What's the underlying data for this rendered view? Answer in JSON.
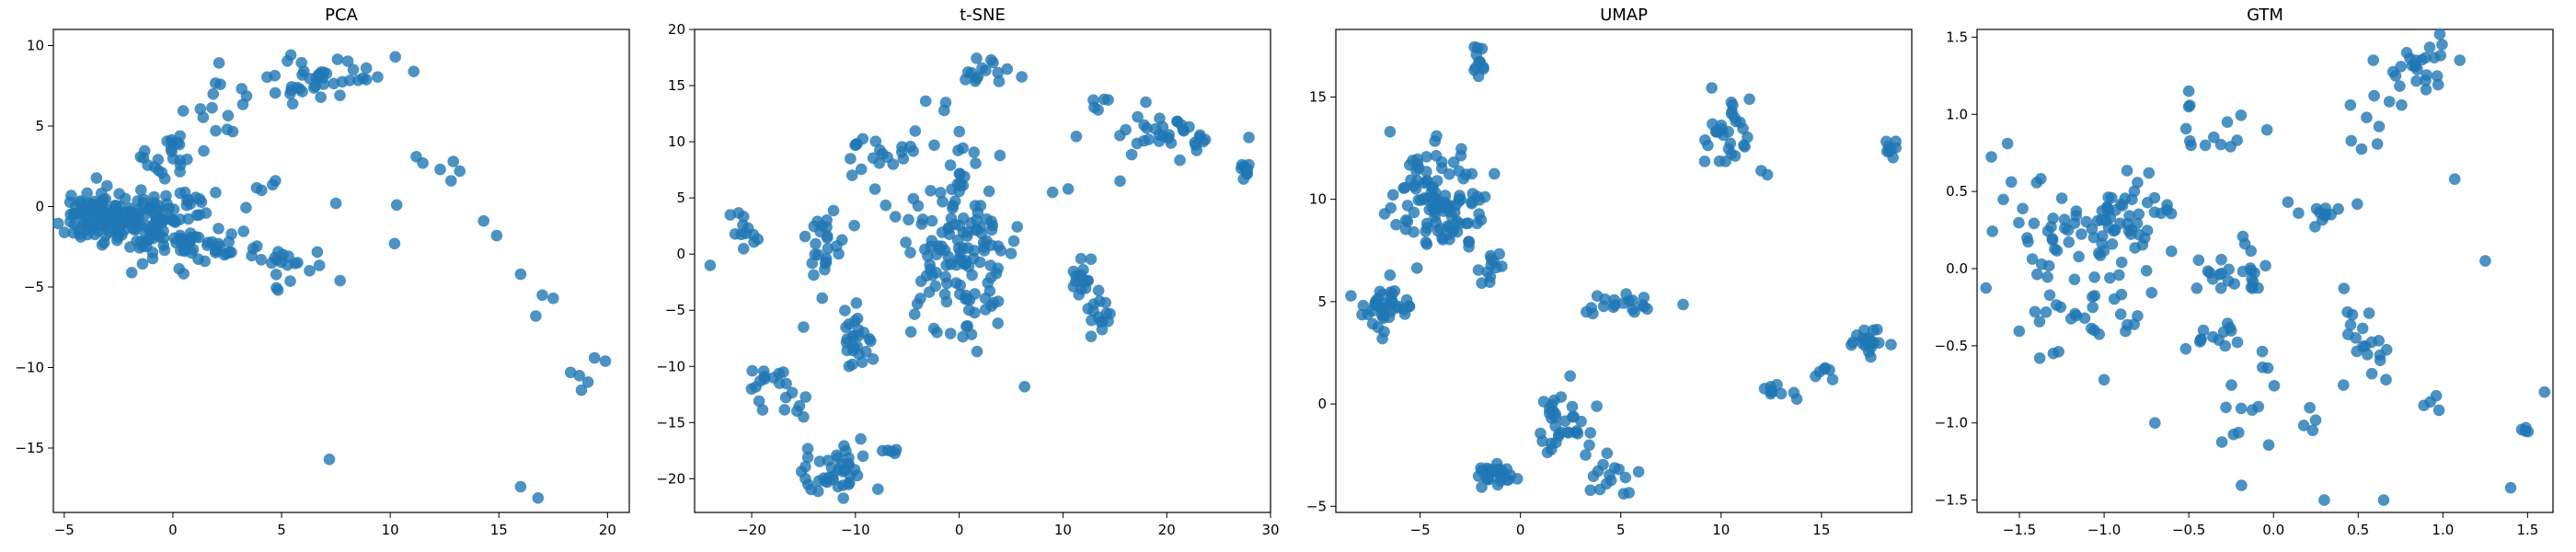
{
  "figure": {
    "point_color": "#1f77b4",
    "background": "#ffffff"
  },
  "chart_data": [
    {
      "type": "scatter",
      "title": "PCA",
      "xlabel": "",
      "ylabel": "",
      "xlim": [
        -5.5,
        21.0
      ],
      "ylim": [
        -19.0,
        11.0
      ],
      "xticks": [
        -5,
        0,
        5,
        10,
        15,
        20
      ],
      "yticks": [
        -15,
        -10,
        -5,
        0,
        5,
        10
      ],
      "xtick_labels": [
        "−5",
        "0",
        "5",
        "10",
        "15",
        "20"
      ],
      "ytick_labels": [
        "−15",
        "−10",
        "−5",
        "0",
        "5",
        "10"
      ],
      "grid": false,
      "legend": "none",
      "clusters": [
        {
          "center": [
            -3.5,
            -0.5
          ],
          "spread": [
            1.0,
            0.9
          ],
          "count": 110
        },
        {
          "center": [
            -0.5,
            -1.0
          ],
          "spread": [
            1.2,
            1.2
          ],
          "count": 110
        },
        {
          "center": [
            0.0,
            3.0
          ],
          "spread": [
            0.6,
            0.8
          ],
          "count": 20
        },
        {
          "center": [
            2.5,
            -2.5
          ],
          "spread": [
            1.5,
            0.6
          ],
          "count": 30
        },
        {
          "center": [
            5.5,
            -4.0
          ],
          "spread": [
            1.0,
            0.6
          ],
          "count": 15
        },
        {
          "center": [
            6.5,
            8.0
          ],
          "spread": [
            1.8,
            1.2
          ],
          "count": 45
        },
        {
          "center": [
            2.0,
            5.0
          ],
          "spread": [
            1.0,
            1.0
          ],
          "count": 10
        },
        {
          "center": [
            4.5,
            1.5
          ],
          "spread": [
            0.4,
            0.3
          ],
          "count": 4
        }
      ],
      "points": [
        [
          7.2,
          -15.7
        ],
        [
          16.0,
          -17.4
        ],
        [
          16.8,
          -18.1
        ],
        [
          10.3,
          0.1
        ],
        [
          10.2,
          -2.3
        ],
        [
          11.2,
          3.1
        ],
        [
          11.5,
          2.7
        ],
        [
          12.3,
          2.3
        ],
        [
          12.8,
          1.6
        ],
        [
          12.9,
          2.8
        ],
        [
          13.2,
          2.2
        ],
        [
          14.3,
          -0.9
        ],
        [
          14.9,
          -1.8
        ],
        [
          16.0,
          -4.2
        ],
        [
          16.7,
          -6.8
        ],
        [
          17.0,
          -5.5
        ],
        [
          17.5,
          -5.7
        ],
        [
          18.3,
          -10.3
        ],
        [
          18.7,
          -10.5
        ],
        [
          18.8,
          -11.4
        ],
        [
          19.1,
          -10.9
        ],
        [
          19.4,
          -9.4
        ],
        [
          19.9,
          -9.6
        ],
        [
          7.5,
          0.2
        ],
        [
          8.3,
          8.5
        ],
        [
          8.9,
          8.6
        ]
      ]
    },
    {
      "type": "scatter",
      "title": "t-SNE",
      "xlabel": "",
      "ylabel": "",
      "xlim": [
        -25.5,
        30.0
      ],
      "ylim": [
        -23.0,
        20.0
      ],
      "xticks": [
        -20,
        -10,
        0,
        10,
        20,
        30
      ],
      "yticks": [
        -20,
        -15,
        -10,
        -5,
        0,
        5,
        10,
        15,
        20
      ],
      "xtick_labels": [
        "−20",
        "−10",
        "0",
        "10",
        "20",
        "30"
      ],
      "ytick_labels": [
        "−20",
        "−15",
        "−10",
        "−5",
        "0",
        "5",
        "10",
        "15",
        "20"
      ],
      "grid": false,
      "legend": "none",
      "clusters": [
        {
          "center": [
            0.0,
            1.0
          ],
          "spread": [
            3.0,
            4.5
          ],
          "count": 150
        },
        {
          "center": [
            2.5,
            16.5
          ],
          "spread": [
            1.2,
            0.8
          ],
          "count": 15
        },
        {
          "center": [
            20.0,
            10.5
          ],
          "spread": [
            3.0,
            1.0
          ],
          "count": 35
        },
        {
          "center": [
            27.5,
            7.5
          ],
          "spread": [
            0.4,
            0.4
          ],
          "count": 10
        },
        {
          "center": [
            -20.5,
            2.0
          ],
          "spread": [
            1.0,
            1.0
          ],
          "count": 12
        },
        {
          "center": [
            -13.0,
            1.0
          ],
          "spread": [
            1.0,
            1.5
          ],
          "count": 25
        },
        {
          "center": [
            -10.0,
            -7.0
          ],
          "spread": [
            0.8,
            1.5
          ],
          "count": 25
        },
        {
          "center": [
            -18.0,
            -12.0
          ],
          "spread": [
            1.5,
            1.0
          ],
          "count": 20
        },
        {
          "center": [
            -12.0,
            -19.5
          ],
          "spread": [
            1.8,
            1.2
          ],
          "count": 40
        },
        {
          "center": [
            12.0,
            -2.0
          ],
          "spread": [
            0.6,
            1.0
          ],
          "count": 15
        },
        {
          "center": [
            13.5,
            -5.5
          ],
          "spread": [
            0.6,
            1.0
          ],
          "count": 15
        },
        {
          "center": [
            -8.0,
            9.0
          ],
          "spread": [
            1.5,
            0.8
          ],
          "count": 15
        },
        {
          "center": [
            -6.5,
            -17.0
          ],
          "spread": [
            0.5,
            0.8
          ],
          "count": 5
        },
        {
          "center": [
            13.5,
            13.5
          ],
          "spread": [
            0.3,
            0.8
          ],
          "count": 5
        }
      ],
      "points": [
        [
          -24.0,
          -1.0
        ],
        [
          6.3,
          -11.8
        ],
        [
          -1.3,
          13.5
        ],
        [
          9.0,
          5.5
        ],
        [
          10.5,
          5.8
        ],
        [
          15.5,
          6.5
        ],
        [
          -15.0,
          -6.5
        ],
        [
          -15.0,
          -14.5
        ]
      ]
    },
    {
      "type": "scatter",
      "title": "UMAP",
      "xlabel": "",
      "ylabel": "",
      "xlim": [
        -9.2,
        19.5
      ],
      "ylim": [
        -5.3,
        18.3
      ],
      "xticks": [
        -5,
        0,
        5,
        10,
        15
      ],
      "yticks": [
        -5,
        0,
        5,
        10,
        15
      ],
      "xtick_labels": [
        "−5",
        "0",
        "5",
        "10",
        "15"
      ],
      "ytick_labels": [
        "−5",
        "0",
        "5",
        "10",
        "15"
      ],
      "grid": false,
      "legend": "none",
      "clusters": [
        {
          "center": [
            -4.0,
            10.0
          ],
          "spread": [
            1.2,
            1.2
          ],
          "count": 110
        },
        {
          "center": [
            -2.0,
            16.8
          ],
          "spread": [
            0.2,
            0.5
          ],
          "count": 12
        },
        {
          "center": [
            -6.8,
            4.6
          ],
          "spread": [
            0.8,
            0.6
          ],
          "count": 40
        },
        {
          "center": [
            -1.5,
            6.7
          ],
          "spread": [
            0.4,
            0.4
          ],
          "count": 12
        },
        {
          "center": [
            5.5,
            4.9
          ],
          "spread": [
            1.0,
            0.3
          ],
          "count": 20
        },
        {
          "center": [
            10.3,
            13.0
          ],
          "spread": [
            0.6,
            1.0
          ],
          "count": 30
        },
        {
          "center": [
            18.4,
            12.5
          ],
          "spread": [
            0.2,
            0.3
          ],
          "count": 8
        },
        {
          "center": [
            17.3,
            3.1
          ],
          "spread": [
            0.4,
            0.3
          ],
          "count": 20
        },
        {
          "center": [
            15.0,
            1.3
          ],
          "spread": [
            0.2,
            0.2
          ],
          "count": 6
        },
        {
          "center": [
            12.7,
            0.7
          ],
          "spread": [
            0.6,
            0.2
          ],
          "count": 10
        },
        {
          "center": [
            2.0,
            -1.0
          ],
          "spread": [
            0.7,
            1.0
          ],
          "count": 35
        },
        {
          "center": [
            -1.2,
            -3.5
          ],
          "spread": [
            0.5,
            0.3
          ],
          "count": 30
        },
        {
          "center": [
            4.8,
            -3.3
          ],
          "spread": [
            0.6,
            0.4
          ],
          "count": 15
        }
      ],
      "points": [
        [
          -6.5,
          13.3
        ],
        [
          12.0,
          11.4
        ],
        [
          12.3,
          11.2
        ]
      ]
    },
    {
      "type": "scatter",
      "title": "GTM",
      "xlabel": "",
      "ylabel": "",
      "xlim": [
        -1.75,
        1.65
      ],
      "ylim": [
        -1.58,
        1.55
      ],
      "xticks": [
        -1.5,
        -1.0,
        -0.5,
        0.0,
        0.5,
        1.0,
        1.5
      ],
      "yticks": [
        -1.5,
        -1.0,
        -0.5,
        0.0,
        0.5,
        1.0,
        1.5
      ],
      "xtick_labels": [
        "−1.5",
        "−1.0",
        "−0.5",
        "0.0",
        "0.5",
        "1.0",
        "1.5"
      ],
      "ytick_labels": [
        "−1.5",
        "−1.0",
        "−0.5",
        "0.0",
        "0.5",
        "1.0",
        "1.5"
      ],
      "grid": false,
      "legend": "none",
      "clusters": [
        {
          "center": [
            -0.9,
            0.3
          ],
          "spread": [
            0.15,
            0.15
          ],
          "count": 60
        },
        {
          "center": [
            -1.4,
            0.3
          ],
          "spread": [
            0.12,
            0.25
          ],
          "count": 30
        },
        {
          "center": [
            -1.1,
            -0.25
          ],
          "spread": [
            0.2,
            0.12
          ],
          "count": 30
        },
        {
          "center": [
            -0.15,
            0.0
          ],
          "spread": [
            0.15,
            0.08
          ],
          "count": 25
        },
        {
          "center": [
            0.85,
            1.3
          ],
          "spread": [
            0.1,
            0.15
          ],
          "count": 25
        },
        {
          "center": [
            0.6,
            1.0
          ],
          "spread": [
            0.08,
            0.15
          ],
          "count": 10
        },
        {
          "center": [
            -0.3,
            0.9
          ],
          "spread": [
            0.1,
            0.1
          ],
          "count": 8
        },
        {
          "center": [
            0.3,
            0.35
          ],
          "spread": [
            0.15,
            0.05
          ],
          "count": 12
        },
        {
          "center": [
            0.55,
            -0.45
          ],
          "spread": [
            0.08,
            0.15
          ],
          "count": 20
        },
        {
          "center": [
            -0.35,
            -0.45
          ],
          "spread": [
            0.12,
            0.06
          ],
          "count": 12
        },
        {
          "center": [
            -0.15,
            -0.8
          ],
          "spread": [
            0.08,
            0.2
          ],
          "count": 15
        },
        {
          "center": [
            0.95,
            -0.9
          ],
          "spread": [
            0.05,
            0.05
          ],
          "count": 4
        },
        {
          "center": [
            1.5,
            -1.05
          ],
          "spread": [
            0.03,
            0.03
          ],
          "count": 4
        },
        {
          "center": [
            -0.5,
            0.75
          ],
          "spread": [
            0.05,
            0.05
          ],
          "count": 4
        },
        {
          "center": [
            0.2,
            -1.0
          ],
          "spread": [
            0.03,
            0.05
          ],
          "count": 4
        }
      ],
      "points": [
        [
          1.6,
          -0.8
        ],
        [
          1.4,
          -1.42
        ],
        [
          0.3,
          -1.5
        ],
        [
          0.65,
          -1.5
        ],
        [
          -0.7,
          -1.0
        ],
        [
          -1.0,
          -0.72
        ],
        [
          1.25,
          0.05
        ],
        [
          1.07,
          0.58
        ],
        [
          1.1,
          1.35
        ],
        [
          -0.5,
          1.15
        ],
        [
          -0.5,
          1.05
        ],
        [
          -1.38,
          -0.58
        ],
        [
          -1.3,
          -0.55
        ]
      ]
    }
  ]
}
